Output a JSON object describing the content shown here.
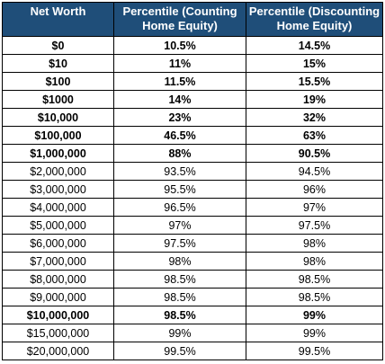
{
  "table": {
    "headers": [
      "Net Worth",
      "Percentile (Counting Home Equity)",
      "Percentile (Discounting Home Equity)"
    ],
    "header_bg": "#1f4e79",
    "header_text_color": "#ffffff",
    "rows": [
      {
        "net_worth": "$0",
        "counting": "10.5%",
        "discounting": "14.5%",
        "bold": true
      },
      {
        "net_worth": "$10",
        "counting": "11%",
        "discounting": "15%",
        "bold": true
      },
      {
        "net_worth": "$100",
        "counting": "11.5%",
        "discounting": "15.5%",
        "bold": true
      },
      {
        "net_worth": "$1000",
        "counting": "14%",
        "discounting": "19%",
        "bold": true
      },
      {
        "net_worth": "$10,000",
        "counting": "23%",
        "discounting": "32%",
        "bold": true
      },
      {
        "net_worth": "$100,000",
        "counting": "46.5%",
        "discounting": "63%",
        "bold": true
      },
      {
        "net_worth": "$1,000,000",
        "counting": "88%",
        "discounting": "90.5%",
        "bold": true
      },
      {
        "net_worth": "$2,000,000",
        "counting": "93.5%",
        "discounting": "94.5%",
        "bold": false
      },
      {
        "net_worth": "$3,000,000",
        "counting": "95.5%",
        "discounting": "96%",
        "bold": false
      },
      {
        "net_worth": "$4,000,000",
        "counting": "96.5%",
        "discounting": "97%",
        "bold": false
      },
      {
        "net_worth": "$5,000,000",
        "counting": "97%",
        "discounting": "97.5%",
        "bold": false
      },
      {
        "net_worth": "$6,000,000",
        "counting": "97.5%",
        "discounting": "98%",
        "bold": false
      },
      {
        "net_worth": "$7,000,000",
        "counting": "98%",
        "discounting": "98%",
        "bold": false
      },
      {
        "net_worth": "$8,000,000",
        "counting": "98.5%",
        "discounting": "98.5%",
        "bold": false
      },
      {
        "net_worth": "$9,000,000",
        "counting": "98.5%",
        "discounting": "98.5%",
        "bold": false
      },
      {
        "net_worth": "$10,000,000",
        "counting": "98.5%",
        "discounting": "99%",
        "bold": true
      },
      {
        "net_worth": "$15,000,000",
        "counting": "99%",
        "discounting": "99%",
        "bold": false
      },
      {
        "net_worth": "$20,000,000",
        "counting": "99.5%",
        "discounting": "99.5%",
        "bold": false
      }
    ]
  }
}
